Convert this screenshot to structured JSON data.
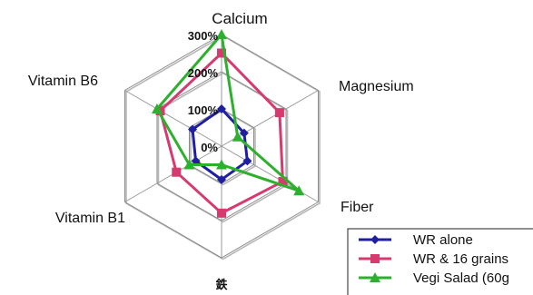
{
  "chart_data": {
    "type": "radar",
    "axes": [
      "Calcium",
      "Magnesium",
      "Fiber",
      "鉄",
      "Vitamin B1",
      "Vitamin B6"
    ],
    "ticks": [
      "0%",
      "100%",
      "200%",
      "300%"
    ],
    "rmax": 300,
    "series": [
      {
        "name": "WR alone",
        "color": "#1f1fa0",
        "marker": "diamond",
        "values": [
          100,
          70,
          80,
          90,
          80,
          90
        ]
      },
      {
        "name": "WR & 16 grains",
        "color": "#d63a6e",
        "marker": "square",
        "values": [
          250,
          180,
          190,
          180,
          140,
          190
        ]
      },
      {
        "name": "Vegi Salad (60g",
        "color": "#2db02d",
        "marker": "triangle",
        "values": [
          300,
          50,
          240,
          50,
          100,
          200
        ]
      }
    ],
    "grid": true,
    "legend_position": "bottom-right"
  }
}
